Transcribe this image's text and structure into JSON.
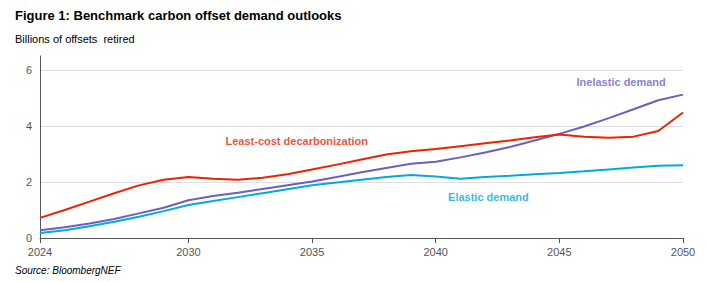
{
  "chart_data": {
    "type": "line",
    "title": "Figure 1: Benchmark carbon offset demand outlooks",
    "ylabel": "Billions of offsets  retired",
    "source": "Source: BloombergNEF",
    "x": [
      2024,
      2025,
      2026,
      2027,
      2028,
      2029,
      2030,
      2031,
      2032,
      2033,
      2034,
      2035,
      2036,
      2037,
      2038,
      2039,
      2040,
      2041,
      2042,
      2043,
      2044,
      2045,
      2046,
      2047,
      2048,
      2049,
      2050
    ],
    "series": [
      {
        "name": "Inelastic demand",
        "color": "#6B5FBF",
        "values": [
          0.28,
          0.38,
          0.52,
          0.68,
          0.88,
          1.08,
          1.35,
          1.5,
          1.62,
          1.75,
          1.88,
          2.02,
          2.18,
          2.35,
          2.5,
          2.65,
          2.72,
          2.88,
          3.05,
          3.25,
          3.48,
          3.72,
          3.98,
          4.28,
          4.6,
          4.92,
          5.12
        ]
      },
      {
        "name": "Least-cost decarbonization",
        "color": "#EE2200",
        "values": [
          0.72,
          1.0,
          1.3,
          1.6,
          1.88,
          2.08,
          2.18,
          2.12,
          2.08,
          2.15,
          2.28,
          2.45,
          2.62,
          2.8,
          2.98,
          3.1,
          3.18,
          3.28,
          3.38,
          3.48,
          3.6,
          3.7,
          3.62,
          3.58,
          3.62,
          3.82,
          4.48
        ]
      },
      {
        "name": "Elastic demand",
        "color": "#00AADD",
        "values": [
          0.18,
          0.28,
          0.42,
          0.58,
          0.76,
          0.96,
          1.18,
          1.32,
          1.46,
          1.6,
          1.74,
          1.88,
          1.98,
          2.08,
          2.18,
          2.25,
          2.2,
          2.12,
          2.18,
          2.22,
          2.28,
          2.32,
          2.38,
          2.45,
          2.52,
          2.58,
          2.6
        ]
      }
    ],
    "annotations": [
      {
        "text": "Inelastic demand",
        "x": 2047.5,
        "y": 5.38,
        "color": "#6B5FBF"
      },
      {
        "text": "Least-cost decarbonization",
        "x": 2031.5,
        "y": 3.28,
        "color": "#EE2200"
      },
      {
        "text": "Elastic demand",
        "x": 2040.5,
        "y": 1.65,
        "color": "#00AADD"
      }
    ],
    "xlim": [
      2024,
      2050
    ],
    "xticks": [
      2024,
      2030,
      2035,
      2040,
      2045,
      2050
    ],
    "ylim": [
      0,
      6.5
    ],
    "yticks": [
      0,
      2,
      4,
      6
    ],
    "grid": true
  }
}
